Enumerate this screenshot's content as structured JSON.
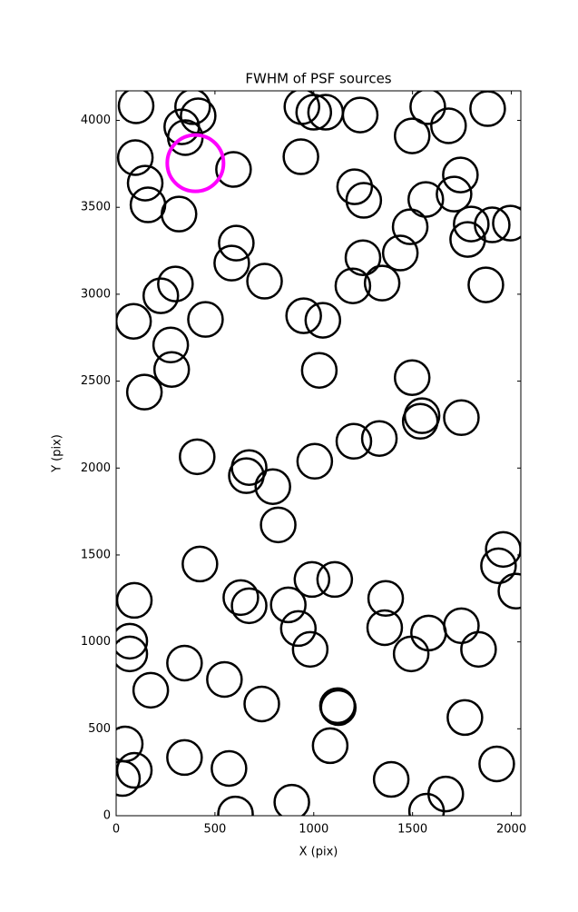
{
  "chart_data": {
    "type": "scatter",
    "title": "FWHM of PSF sources",
    "x_label": "X (pix)",
    "y_label": "Y (pix)",
    "xlim": [
      0,
      2048
    ],
    "ylim": [
      0,
      4170
    ],
    "xticks": [
      0,
      500,
      1000,
      1500,
      2000
    ],
    "yticks": [
      0,
      500,
      1000,
      1500,
      2000,
      2500,
      3000,
      3500,
      4000
    ],
    "series": [
      {
        "color": "#000000",
        "x": [
          101,
          387,
          415,
          332,
          350,
          97,
          147,
          161,
          318,
          594,
          608,
          585,
          751,
          300,
          226,
          88,
          452,
          276,
          281,
          143,
          940,
          1000,
          1060,
          1235,
          935,
          1498,
          1577,
          1682,
          1880,
          1742,
          1207,
          1253,
          1567,
          1710,
          1797,
          1903,
          1995,
          1779,
          1488,
          1438,
          1249,
          1198,
          1346,
          1871,
          949,
          1046,
          1028,
          1498,
          1548,
          1539,
          1747,
          1203,
          1332,
          410,
          673,
          659,
          793,
          1005,
          820,
          424,
          92,
          631,
          673,
          871,
          991,
          1106,
          922,
          982,
          1364,
          1359,
          1581,
          1493,
          1747,
          1834,
          1959,
          1935,
          2023,
          69,
          69,
          346,
          175,
          548,
          737,
          1120,
          1124,
          1765,
          46,
          92,
          32,
          346,
          571,
          1083,
          1392,
          1926,
          1668,
          1571,
          604,
          889
        ],
        "y": [
          4084,
          4079,
          4026,
          3963,
          3901,
          3786,
          3639,
          3514,
          3461,
          3718,
          3294,
          3179,
          3075,
          3059,
          2991,
          2844,
          2855,
          2708,
          2567,
          2437,
          4079,
          4047,
          4047,
          4031,
          3791,
          3911,
          4079,
          3969,
          4068,
          3686,
          3618,
          3540,
          3545,
          3576,
          3404,
          3399,
          3409,
          3315,
          3388,
          3237,
          3210,
          3048,
          3064,
          3054,
          2876,
          2850,
          2562,
          2520,
          2301,
          2269,
          2290,
          2154,
          2170,
          2065,
          2003,
          1956,
          1893,
          2039,
          1673,
          1448,
          1239,
          1255,
          1208,
          1213,
          1359,
          1359,
          1077,
          957,
          1250,
          1082,
          1051,
          931,
          1093,
          957,
          1532,
          1438,
          1292,
          1004,
          931,
          878,
          722,
          784,
          643,
          633,
          622,
          565,
          413,
          261,
          214,
          335,
          272,
          403,
          209,
          298,
          125,
          26,
          10,
          78
        ]
      },
      {
        "color": "#ff00ff",
        "x": [
          401
        ],
        "y": [
          3754
        ]
      }
    ]
  }
}
